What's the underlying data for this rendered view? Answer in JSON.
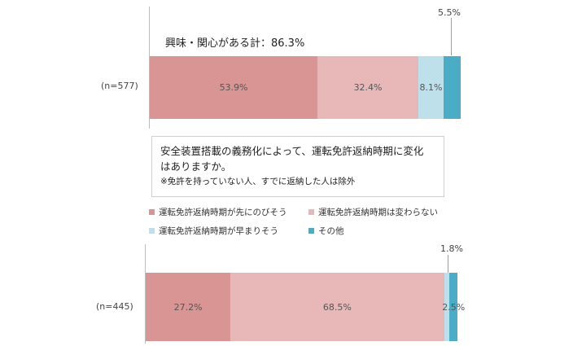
{
  "colors": {
    "delay": "#d99494",
    "nochange": "#e8b8b8",
    "earlier": "#bde0ea",
    "other": "#4bacc6"
  },
  "chart_data": [
    {
      "type": "bar",
      "stacked": true,
      "orientation": "horizontal",
      "category": "(n=577)",
      "title": "興味・関心がある計：86.3%",
      "series": [
        {
          "name": "",
          "value": 53.9,
          "label": "53.9%"
        },
        {
          "name": "",
          "value": 32.4,
          "label": "32.4%"
        },
        {
          "name": "",
          "value": 8.1,
          "label": "8.1%"
        },
        {
          "name": "",
          "value": 5.5,
          "label": "5.5%"
        }
      ]
    },
    {
      "type": "bar",
      "stacked": true,
      "orientation": "horizontal",
      "category": "(n=445)",
      "series": [
        {
          "name": "運転免許返納時期が先にのびそう",
          "value": 27.2,
          "label": "27.2%"
        },
        {
          "name": "運転免許返納時期は変わらない",
          "value": 68.5,
          "label": "68.5%"
        },
        {
          "name": "運転免許返納時期が早まりそう",
          "value": 1.8,
          "label": "1.8%"
        },
        {
          "name": "その他",
          "value": 2.5,
          "label": "2.5%"
        }
      ]
    }
  ],
  "question": {
    "line1": "安全装置搭載の義務化によって、運転免許返納時期に変化",
    "line2": "はありますか。",
    "note": "※免許を持っていない人、すでに返納した人は除外"
  },
  "legend": [
    {
      "label": "運転免許返納時期が先にのびそう",
      "color": "#d99494"
    },
    {
      "label": "運転免許返納時期は変わらない",
      "color": "#e8b8b8"
    },
    {
      "label": "運転免許返納時期が早まりそう",
      "color": "#bde0ea"
    },
    {
      "label": "その他",
      "color": "#4bacc6"
    }
  ]
}
